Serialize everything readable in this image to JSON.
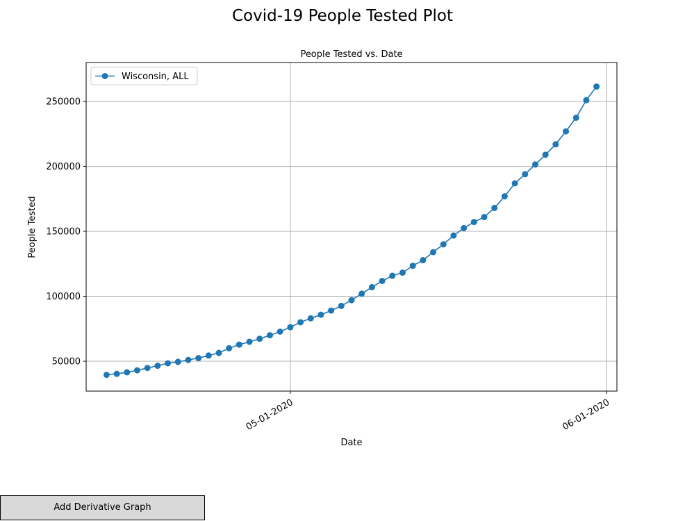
{
  "window": {
    "suptitle": "Covid-19 People Tested Plot"
  },
  "button": {
    "label": "Add Derivative Graph"
  },
  "chart_data": {
    "type": "line",
    "title": "People Tested vs. Date",
    "xlabel": "Date",
    "ylabel": "People Tested",
    "x_ticks": [
      "05-01-2020",
      "06-01-2020"
    ],
    "y_ticks": [
      50000,
      100000,
      150000,
      200000,
      250000
    ],
    "ylim": [
      27000,
      280000
    ],
    "xlim": [
      "2020-04-11",
      "2020-06-02"
    ],
    "grid": true,
    "legend_position": "top-left",
    "series": [
      {
        "name": "Wisconsin, ALL",
        "color": "#1f77b4",
        "marker": "circle",
        "x": [
          "2020-04-13",
          "2020-04-14",
          "2020-04-15",
          "2020-04-16",
          "2020-04-17",
          "2020-04-18",
          "2020-04-19",
          "2020-04-20",
          "2020-04-21",
          "2020-04-22",
          "2020-04-23",
          "2020-04-24",
          "2020-04-25",
          "2020-04-26",
          "2020-04-27",
          "2020-04-28",
          "2020-04-29",
          "2020-04-30",
          "2020-05-01",
          "2020-05-02",
          "2020-05-03",
          "2020-05-04",
          "2020-05-05",
          "2020-05-06",
          "2020-05-07",
          "2020-05-08",
          "2020-05-09",
          "2020-05-10",
          "2020-05-11",
          "2020-05-12",
          "2020-05-13",
          "2020-05-14",
          "2020-05-15",
          "2020-05-16",
          "2020-05-17",
          "2020-05-18",
          "2020-05-19",
          "2020-05-20",
          "2020-05-21",
          "2020-05-22",
          "2020-05-23",
          "2020-05-24",
          "2020-05-25",
          "2020-05-26",
          "2020-05-27",
          "2020-05-28",
          "2020-05-29",
          "2020-05-30",
          "2020-05-31"
        ],
        "values": [
          39500,
          40300,
          41500,
          43000,
          44800,
          46500,
          48400,
          49500,
          51000,
          52400,
          54400,
          56400,
          60000,
          62800,
          65000,
          67300,
          70000,
          72800,
          76200,
          80000,
          83000,
          85800,
          89000,
          92600,
          97000,
          102000,
          107000,
          111800,
          115800,
          118200,
          123500,
          127800,
          134000,
          140000,
          146800,
          152500,
          157200,
          161000,
          168000,
          177000,
          187000,
          194000,
          201500,
          209000,
          217000,
          227000,
          237500,
          251000,
          261500
        ]
      }
    ]
  }
}
